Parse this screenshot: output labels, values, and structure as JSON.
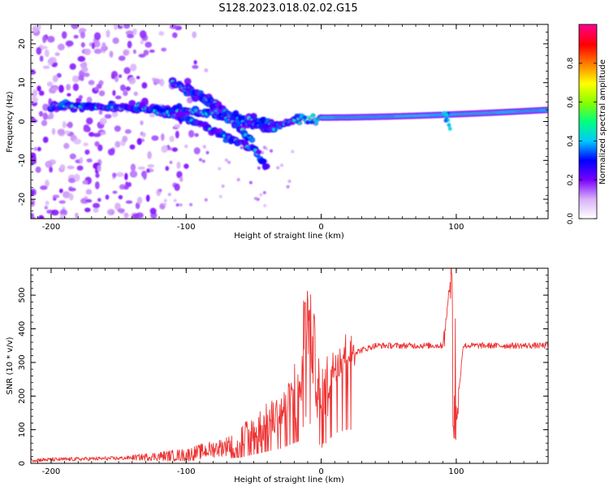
{
  "title": "S128.2023.018.02.02.G15",
  "chart_data": [
    {
      "type": "heatmap",
      "name": "spectrogram",
      "xlabel": "Height of straight line (km)",
      "ylabel": "Frequency (Hz)",
      "xlim": [
        -215,
        168
      ],
      "ylim": [
        -25,
        25
      ],
      "xticks": [
        -200,
        -100,
        0,
        100
      ],
      "yticks": [
        -20,
        -10,
        0,
        10,
        20
      ],
      "colorbar": {
        "label": "Normalized spectral amplitude",
        "range": [
          0,
          1
        ],
        "ticks": [
          "0.0",
          "0.2",
          "0.4",
          "0.6",
          "0.8"
        ],
        "stops": [
          "#ffffff",
          "#d8b0f8",
          "#7a00ff",
          "#0000ff",
          "#00c8ff",
          "#00ff80",
          "#88ff00",
          "#ffff00",
          "#ff8000",
          "#ff0000",
          "#ff0088"
        ]
      },
      "features": {
        "noise_region_km": [
          -200,
          -130
        ],
        "carrier_line": {
          "km_start": 0,
          "km_end": 168,
          "freq_start_hz": 1,
          "freq_end_hz": 3
        },
        "ray_branches": [
          {
            "km": [
              -200,
              -100,
              -60,
              -30,
              -15
            ],
            "hz": [
              4,
              3,
              1,
              -1,
              1
            ]
          },
          {
            "km": [
              -140,
              -100,
              -70,
              -50,
              -40
            ],
            "hz": [
              4,
              1,
              -4,
              -7,
              -12
            ]
          },
          {
            "km": [
              -110,
              -90,
              -75,
              -60,
              -50
            ],
            "hz": [
              10,
              6,
              2,
              -2,
              -5
            ]
          },
          {
            "km": [
              -100,
              -80,
              -65,
              -50,
              -35
            ],
            "hz": [
              9,
              5,
              1,
              -1,
              -2
            ]
          }
        ]
      }
    },
    {
      "type": "line",
      "name": "snr",
      "xlabel": "Height of straight line (km)",
      "ylabel": "SNR (10 * v/v)",
      "xlim": [
        -215,
        168
      ],
      "ylim": [
        0,
        580
      ],
      "xticks": [
        -200,
        -100,
        0,
        100
      ],
      "yticks": [
        0,
        100,
        200,
        300,
        400,
        500
      ],
      "color": "#ee3333",
      "key_points": {
        "km": [
          -215,
          -150,
          -100,
          -60,
          -30,
          -15,
          -12,
          -5,
          0,
          10,
          20,
          25,
          40,
          60,
          90,
          97,
          99,
          105,
          168
        ],
        "snr": [
          10,
          15,
          25,
          60,
          150,
          230,
          480,
          320,
          150,
          300,
          340,
          330,
          350,
          350,
          350,
          580,
          75,
          350,
          350
        ]
      }
    }
  ]
}
